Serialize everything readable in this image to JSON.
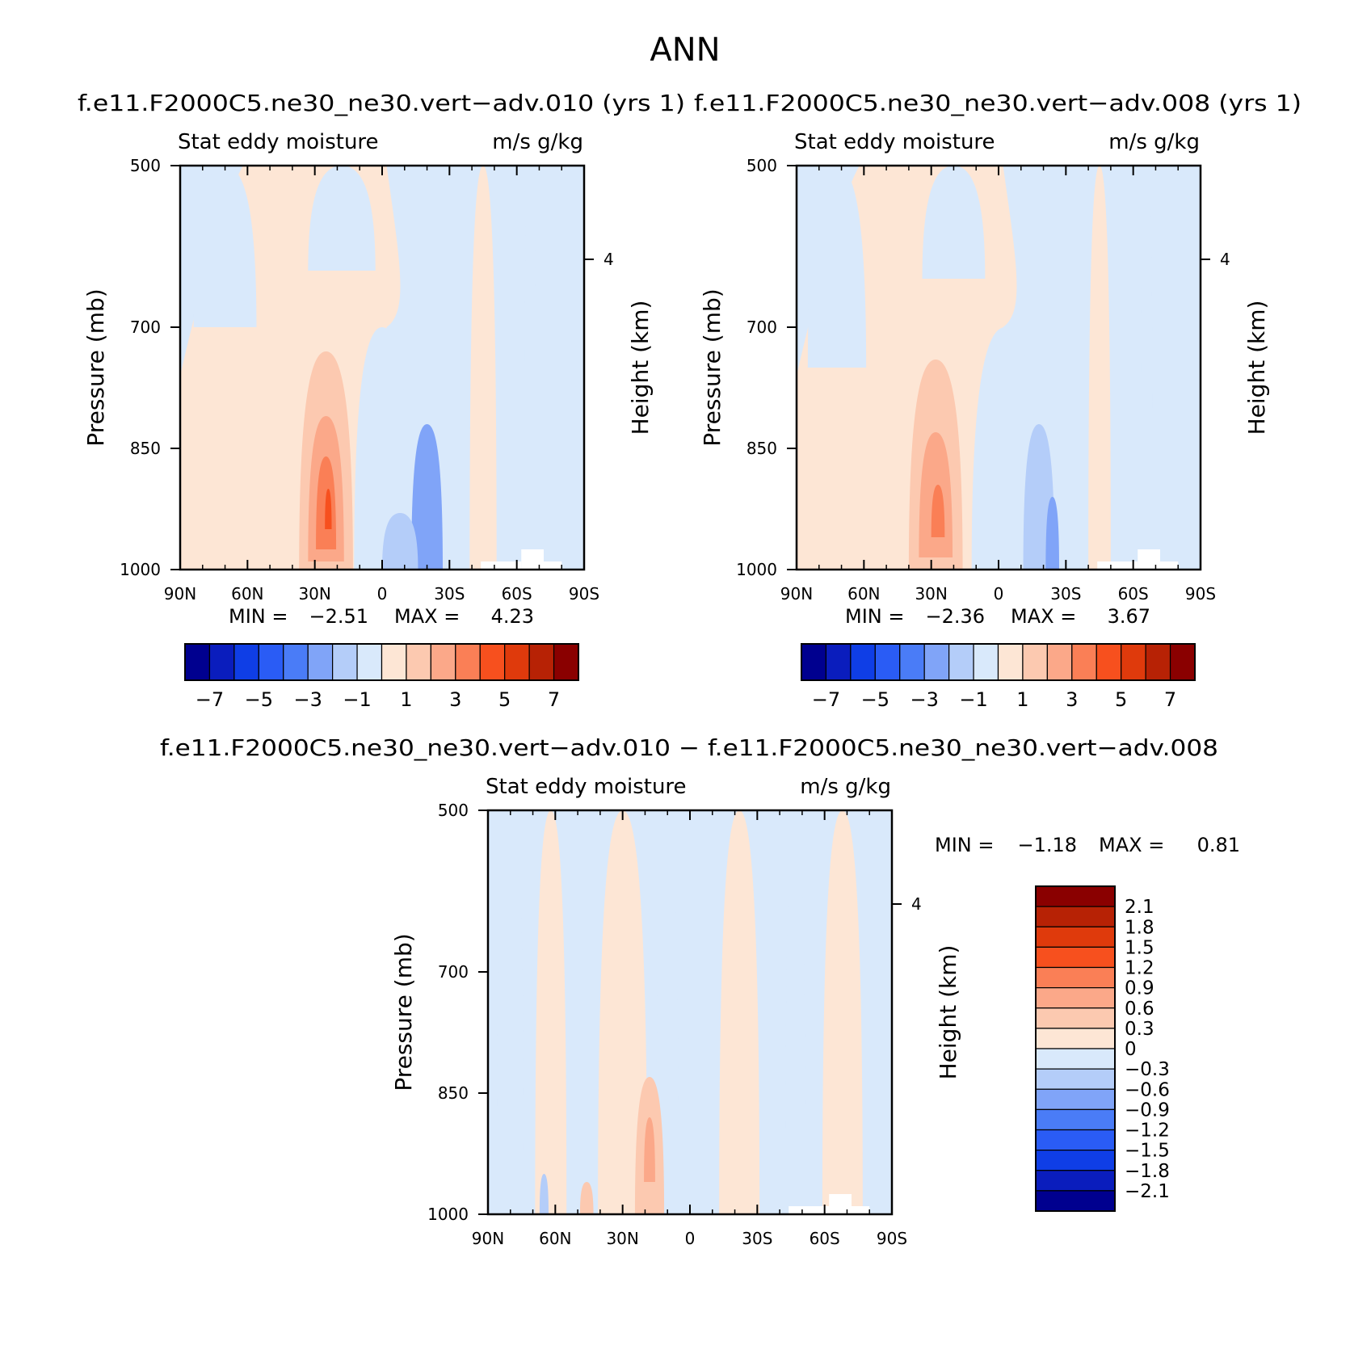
{
  "figure_title": "ANN",
  "palette": {
    "blue": [
      "#00008f",
      "#0a1dbd",
      "#0f3ee6",
      "#2a5cf5",
      "#4a7cf7",
      "#80a4f8",
      "#b4cdf9",
      "#d9e9fb"
    ],
    "red": [
      "#fde6d5",
      "#fcc9b0",
      "#fba889",
      "#fa7f56",
      "#f7501e",
      "#df3a0c",
      "#b72205",
      "#8a0000"
    ]
  },
  "chart_data": [
    {
      "type": "contour",
      "id": "panel_010",
      "title": "f.e11.F2000C5.ne30_ne30.vert−adv.010 (yrs 1)",
      "left_label": "Stat eddy moisture",
      "right_label": "m/s g/kg",
      "ylabel": "Pressure (mb)",
      "y2label": "Height (km)",
      "xticks": [
        "90N",
        "60N",
        "30N",
        "0",
        "30S",
        "60S",
        "90S"
      ],
      "xlim": [
        90,
        -90
      ],
      "yticks": [
        500,
        700,
        850,
        1000
      ],
      "ylim": [
        500,
        1000
      ],
      "y2ticks": [
        {
          "label": "4",
          "pressure": 616
        }
      ],
      "min_label": "MIN =",
      "min": "−2.51",
      "max_label": "MAX =",
      "max": "4.23",
      "levels": [
        -7,
        -6,
        -5,
        -4,
        -3,
        -2,
        -1,
        0,
        1,
        2,
        3,
        4,
        5,
        6,
        7
      ],
      "colorbar_labels": [
        "−7",
        "−5",
        "−3",
        "−1",
        "1",
        "3",
        "5",
        "7"
      ],
      "features": [
        {
          "lat": 70,
          "lon_w": 28,
          "p0": 500,
          "p1": 700,
          "value": -0.5
        },
        {
          "lat": 18,
          "lon_w": 30,
          "p0": 500,
          "p1": 630,
          "value": -0.5
        },
        {
          "lat": 0,
          "lon_w": 25,
          "p0": 700,
          "p1": 1000,
          "value": -0.6
        },
        {
          "lat": -20,
          "lon_w": 14,
          "p0": 820,
          "p1": 1000,
          "value": -2.1
        },
        {
          "lat": -8,
          "lon_w": 16,
          "p0": 930,
          "p1": 1000,
          "value": -1.2
        },
        {
          "lat": 25,
          "lon_w": 24,
          "p0": 730,
          "p1": 1000,
          "value": 1.5
        },
        {
          "lat": 25,
          "lon_w": 16,
          "p0": 810,
          "p1": 990,
          "value": 2.5
        },
        {
          "lat": 25,
          "lon_w": 9,
          "p0": 860,
          "p1": 975,
          "value": 3.5
        },
        {
          "lat": 24,
          "lon_w": 3,
          "p0": 900,
          "p1": 950,
          "value": 4.2
        },
        {
          "lat": -45,
          "lon_w": 12,
          "p0": 500,
          "p1": 1000,
          "value": 0.4
        },
        {
          "lat": -66,
          "lon_w": 5,
          "p0": 500,
          "p1": 780,
          "value": -0.8
        }
      ]
    },
    {
      "type": "contour",
      "id": "panel_008",
      "title": "f.e11.F2000C5.ne30_ne30.vert−adv.008 (yrs 1)",
      "left_label": "Stat eddy moisture",
      "right_label": "m/s g/kg",
      "ylabel": "Pressure (mb)",
      "y2label": "Height (km)",
      "xticks": [
        "90N",
        "60N",
        "30N",
        "0",
        "30S",
        "60S",
        "90S"
      ],
      "xlim": [
        90,
        -90
      ],
      "yticks": [
        500,
        700,
        850,
        1000
      ],
      "ylim": [
        500,
        1000
      ],
      "y2ticks": [
        {
          "label": "4",
          "pressure": 616
        }
      ],
      "min_label": "MIN =",
      "min": "−2.36",
      "max_label": "MAX =",
      "max": "3.67",
      "levels": [
        -7,
        -6,
        -5,
        -4,
        -3,
        -2,
        -1,
        0,
        1,
        2,
        3,
        4,
        5,
        6,
        7
      ],
      "colorbar_labels": [
        "−7",
        "−5",
        "−3",
        "−1",
        "1",
        "3",
        "5",
        "7"
      ],
      "features": [
        {
          "lat": 72,
          "lon_w": 26,
          "p0": 500,
          "p1": 750,
          "value": -0.5
        },
        {
          "lat": 20,
          "lon_w": 28,
          "p0": 500,
          "p1": 640,
          "value": -0.5
        },
        {
          "lat": -3,
          "lon_w": 30,
          "p0": 700,
          "p1": 1000,
          "value": -0.6
        },
        {
          "lat": -18,
          "lon_w": 14,
          "p0": 820,
          "p1": 1000,
          "value": -1.5
        },
        {
          "lat": -24,
          "lon_w": 6,
          "p0": 910,
          "p1": 1000,
          "value": -2.3
        },
        {
          "lat": 28,
          "lon_w": 24,
          "p0": 740,
          "p1": 1000,
          "value": 1.5
        },
        {
          "lat": 28,
          "lon_w": 15,
          "p0": 830,
          "p1": 985,
          "value": 2.5
        },
        {
          "lat": 27,
          "lon_w": 6,
          "p0": 895,
          "p1": 960,
          "value": 3.5
        },
        {
          "lat": -45,
          "lon_w": 10,
          "p0": 500,
          "p1": 1000,
          "value": 0.4
        },
        {
          "lat": -66,
          "lon_w": 5,
          "p0": 500,
          "p1": 800,
          "value": -0.8
        }
      ]
    },
    {
      "type": "contour",
      "id": "panel_diff",
      "title": "f.e11.F2000C5.ne30_ne30.vert−adv.010 − f.e11.F2000C5.ne30_ne30.vert−adv.008",
      "left_label": "Stat eddy moisture",
      "right_label": "m/s g/kg",
      "ylabel": "Pressure (mb)",
      "y2label": "Height (km)",
      "xticks": [
        "90N",
        "60N",
        "30N",
        "0",
        "30S",
        "60S",
        "90S"
      ],
      "xlim": [
        90,
        -90
      ],
      "yticks": [
        500,
        700,
        850,
        1000
      ],
      "ylim": [
        500,
        1000
      ],
      "y2ticks": [
        {
          "label": "4",
          "pressure": 616
        }
      ],
      "min_label": "MIN =",
      "min": "−1.18",
      "max_label": "MAX =",
      "max": "0.81",
      "levels": [
        -2.1,
        -1.8,
        -1.5,
        -1.2,
        -0.9,
        -0.6,
        -0.3,
        0,
        0.3,
        0.6,
        0.9,
        1.2,
        1.5,
        1.8,
        2.1
      ],
      "colorbar_labels": [
        "2.1",
        "1.8",
        "1.5",
        "1.2",
        "0.9",
        "0.6",
        "0.3",
        "0",
        "−0.3",
        "−0.6",
        "−0.9",
        "−1.2",
        "−1.5",
        "−1.8",
        "−2.1"
      ],
      "features": [
        {
          "lat": 62,
          "lon_w": 14,
          "p0": 500,
          "p1": 1000,
          "value": 0.15
        },
        {
          "lat": 30,
          "lon_w": 22,
          "p0": 500,
          "p1": 1000,
          "value": 0.15
        },
        {
          "lat": -22,
          "lon_w": 18,
          "p0": 500,
          "p1": 1000,
          "value": 0.15
        },
        {
          "lat": -68,
          "lon_w": 18,
          "p0": 500,
          "p1": 1000,
          "value": 0.15
        },
        {
          "lat": 10,
          "lon_w": 10,
          "p0": 500,
          "p1": 1000,
          "value": -0.15
        },
        {
          "lat": -47,
          "lon_w": 9,
          "p0": 500,
          "p1": 1000,
          "value": -0.15
        },
        {
          "lat": 80,
          "lon_w": 12,
          "p0": 500,
          "p1": 930,
          "value": -0.15
        },
        {
          "lat": 18,
          "lon_w": 13,
          "p0": 830,
          "p1": 1000,
          "value": 0.45
        },
        {
          "lat": 18,
          "lon_w": 5,
          "p0": 880,
          "p1": 960,
          "value": 0.75
        },
        {
          "lat": 46,
          "lon_w": 6,
          "p0": 960,
          "p1": 1000,
          "value": 0.45
        },
        {
          "lat": 65,
          "lon_w": 4,
          "p0": 950,
          "p1": 1000,
          "value": -0.45
        }
      ]
    }
  ]
}
